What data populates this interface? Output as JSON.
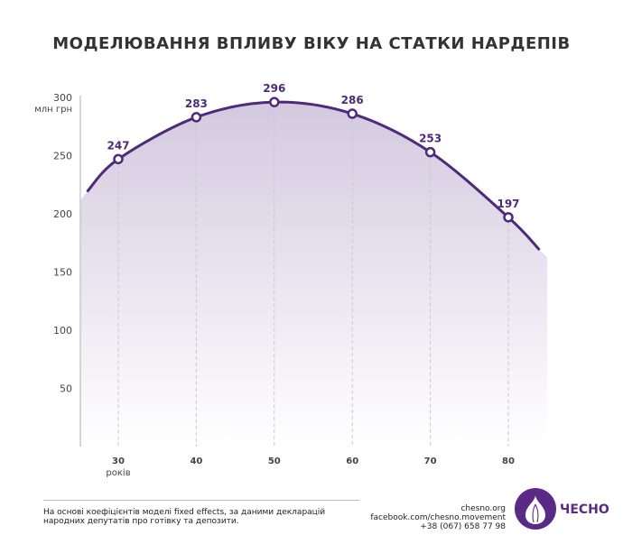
{
  "chart_data": {
    "type": "line",
    "title": "МОДЕЛЮВАННЯ ВПЛИВУ ВІКУ НА СТАТКИ НАРДЕПІВ",
    "ylabel": "млн грн",
    "xlabel": "років",
    "x": [
      30,
      40,
      50,
      60,
      70,
      80
    ],
    "values": [
      247,
      283,
      296,
      286,
      253,
      197
    ],
    "curve_extension": {
      "start": [
        26,
        219
      ],
      "end": [
        84,
        169
      ]
    },
    "ylim": [
      0,
      300
    ],
    "xlim": [
      25,
      85
    ],
    "yticks": [
      50,
      100,
      150,
      200,
      250,
      300
    ],
    "xticks": [
      30,
      40,
      50,
      60,
      70,
      80
    ],
    "colors": {
      "line": "#4e2a7a",
      "fill": "#d3c9df"
    }
  },
  "footer": {
    "note": "На основі коефіцієнтів моделі fixed effects, за даними декларацій народних депутатів про готівку та депозити.",
    "contacts": [
      "chesno.org",
      "facebook.com/chesno.movement",
      "+38 (067) 658 77 98"
    ],
    "brand": "ЧЕСНО"
  }
}
